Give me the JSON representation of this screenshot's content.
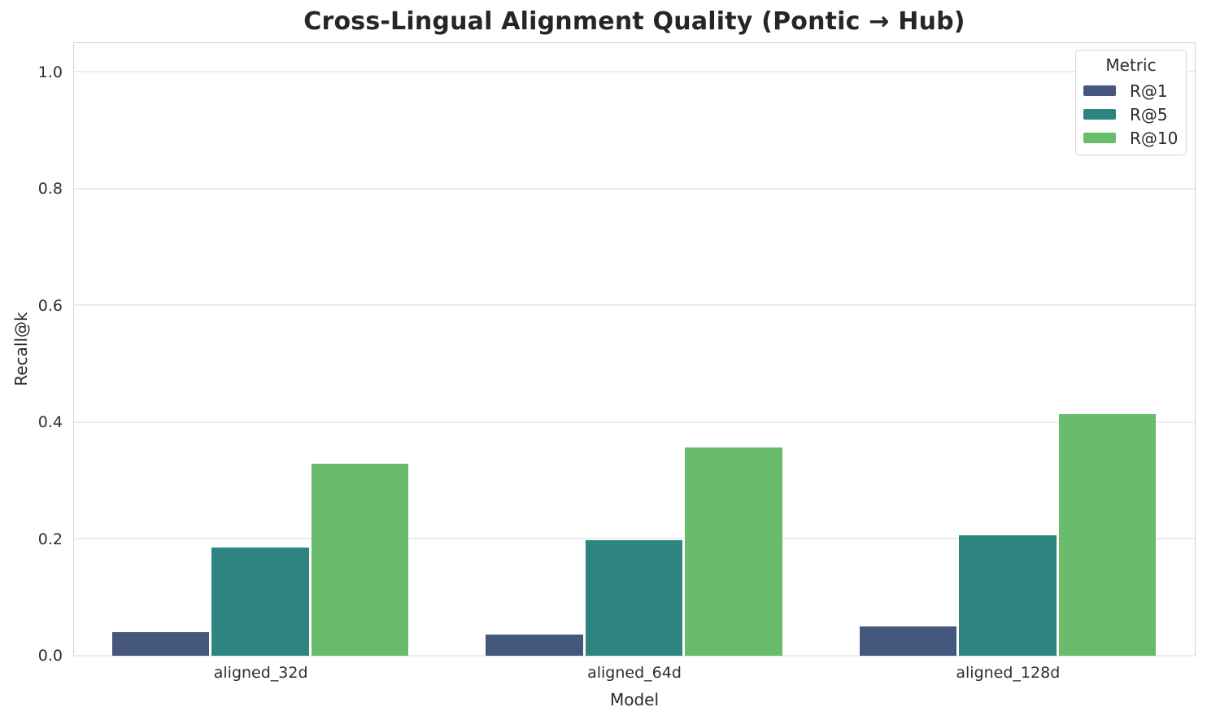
{
  "chart_data": {
    "type": "bar",
    "title": "Cross-Lingual Alignment Quality (Pontic → Hub)",
    "xlabel": "Model",
    "ylabel": "Recall@k",
    "categories": [
      "aligned_32d",
      "aligned_64d",
      "aligned_128d"
    ],
    "series": [
      {
        "name": "R@1",
        "color": "#46577E",
        "values": [
          0.04,
          0.035,
          0.049
        ]
      },
      {
        "name": "R@5",
        "color": "#2E847E",
        "values": [
          0.185,
          0.198,
          0.206
        ]
      },
      {
        "name": "R@10",
        "color": "#68BC6B",
        "values": [
          0.328,
          0.356,
          0.413
        ]
      }
    ],
    "ylim": [
      0,
      1.05
    ],
    "yticks": [
      0.0,
      0.2,
      0.4,
      0.6,
      0.8,
      1.0
    ],
    "ytick_labels": [
      "0.0",
      "0.2",
      "0.4",
      "0.6",
      "0.8",
      "1.0"
    ],
    "grid": "horizontal",
    "gridline_color": "#ececec",
    "spine_color": "#d4d4d4",
    "legend": {
      "title": "Metric",
      "position": "upper right"
    }
  }
}
